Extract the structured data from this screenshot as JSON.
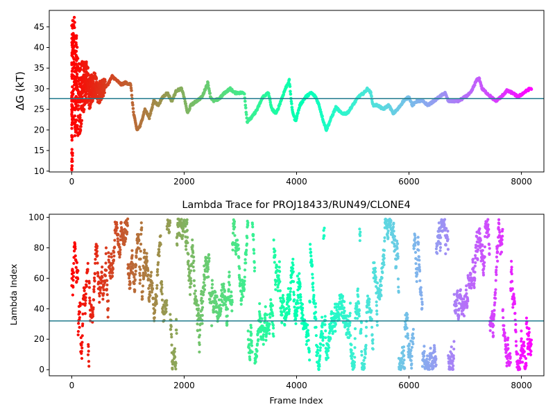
{
  "chart_data": [
    {
      "type": "scatter",
      "title": "",
      "xlabel": "",
      "ylabel": "ΔG (kT)",
      "xlim": [
        -400,
        8400
      ],
      "ylim": [
        9.8,
        49
      ],
      "xticks": [
        0,
        2000,
        4000,
        6000,
        8000
      ],
      "yticks": [
        10,
        15,
        20,
        25,
        30,
        35,
        40,
        45
      ],
      "xtick_labels": [
        "0",
        "2000",
        "4000",
        "6000",
        "8000"
      ],
      "ytick_labels": [
        "10",
        "15",
        "20",
        "25",
        "30",
        "35",
        "40",
        "45"
      ],
      "hline": 27.6,
      "hline_color": "#1f7a8c",
      "frames": 8192,
      "colormap": "rainbow (red at frame 0 to violet at last frame)",
      "trace_keypoints": [
        [
          30,
          40
        ],
        [
          60,
          33
        ],
        [
          100,
          30
        ],
        [
          150,
          28
        ],
        [
          200,
          30
        ],
        [
          260,
          32
        ],
        [
          320,
          29
        ],
        [
          400,
          31
        ],
        [
          480,
          29
        ],
        [
          560,
          30
        ],
        [
          640,
          31
        ],
        [
          720,
          33
        ],
        [
          800,
          32
        ],
        [
          880,
          31
        ],
        [
          960,
          31.5
        ],
        [
          1050,
          31
        ],
        [
          1100,
          24
        ],
        [
          1160,
          20
        ],
        [
          1220,
          21
        ],
        [
          1300,
          25
        ],
        [
          1380,
          23
        ],
        [
          1460,
          27
        ],
        [
          1540,
          26
        ],
        [
          1620,
          28
        ],
        [
          1700,
          29
        ],
        [
          1780,
          27
        ],
        [
          1860,
          29.5
        ],
        [
          1950,
          30
        ],
        [
          2000,
          28
        ],
        [
          2060,
          24
        ],
        [
          2120,
          26
        ],
        [
          2220,
          27
        ],
        [
          2320,
          28
        ],
        [
          2420,
          31.5
        ],
        [
          2470,
          28
        ],
        [
          2520,
          27
        ],
        [
          2620,
          27.5
        ],
        [
          2720,
          29
        ],
        [
          2820,
          30
        ],
        [
          2900,
          29
        ],
        [
          2980,
          29
        ],
        [
          3070,
          29
        ],
        [
          3120,
          22
        ],
        [
          3200,
          23
        ],
        [
          3300,
          25
        ],
        [
          3400,
          28
        ],
        [
          3500,
          29
        ],
        [
          3560,
          25
        ],
        [
          3640,
          24
        ],
        [
          3720,
          27
        ],
        [
          3800,
          30
        ],
        [
          3870,
          32
        ],
        [
          3920,
          25
        ],
        [
          3980,
          22
        ],
        [
          4060,
          26
        ],
        [
          4160,
          28
        ],
        [
          4260,
          29
        ],
        [
          4340,
          28
        ],
        [
          4400,
          26
        ],
        [
          4480,
          22
        ],
        [
          4530,
          20
        ],
        [
          4620,
          23
        ],
        [
          4700,
          25.5
        ],
        [
          4800,
          24
        ],
        [
          4900,
          24
        ],
        [
          5000,
          26
        ],
        [
          5100,
          28
        ],
        [
          5200,
          29
        ],
        [
          5260,
          30
        ],
        [
          5320,
          29
        ],
        [
          5360,
          26
        ],
        [
          5440,
          26
        ],
        [
          5540,
          25
        ],
        [
          5640,
          26
        ],
        [
          5720,
          24
        ],
        [
          5800,
          25
        ],
        [
          5900,
          27
        ],
        [
          6000,
          28
        ],
        [
          6060,
          26
        ],
        [
          6140,
          27
        ],
        [
          6240,
          27
        ],
        [
          6340,
          26
        ],
        [
          6440,
          27
        ],
        [
          6540,
          28
        ],
        [
          6640,
          29
        ],
        [
          6700,
          27
        ],
        [
          6780,
          27
        ],
        [
          6880,
          27
        ],
        [
          7000,
          28
        ],
        [
          7100,
          29
        ],
        [
          7200,
          32
        ],
        [
          7250,
          32.5
        ],
        [
          7300,
          30
        ],
        [
          7380,
          29
        ],
        [
          7460,
          28
        ],
        [
          7540,
          27
        ],
        [
          7640,
          28
        ],
        [
          7740,
          29.5
        ],
        [
          7840,
          29
        ],
        [
          7940,
          28
        ],
        [
          8040,
          29
        ],
        [
          8150,
          30
        ]
      ]
    },
    {
      "type": "scatter",
      "title": "Lambda Trace for PROJ18433/RUN49/CLONE4",
      "xlabel": "Frame Index",
      "ylabel": "Lambda Index",
      "xlim": [
        -400,
        8400
      ],
      "ylim": [
        -4,
        102
      ],
      "xticks": [
        0,
        2000,
        4000,
        6000,
        8000
      ],
      "yticks": [
        0,
        20,
        40,
        60,
        80,
        100
      ],
      "xtick_labels": [
        "0",
        "2000",
        "4000",
        "6000",
        "8000"
      ],
      "ytick_labels": [
        "0",
        "20",
        "40",
        "60",
        "80",
        "100"
      ],
      "hline": 32,
      "hline_color": "#1f7a8c",
      "frames": 8192,
      "lambda_range": [
        0,
        99
      ],
      "colormap": "rainbow (red at frame 0 to violet at last frame)"
    }
  ]
}
